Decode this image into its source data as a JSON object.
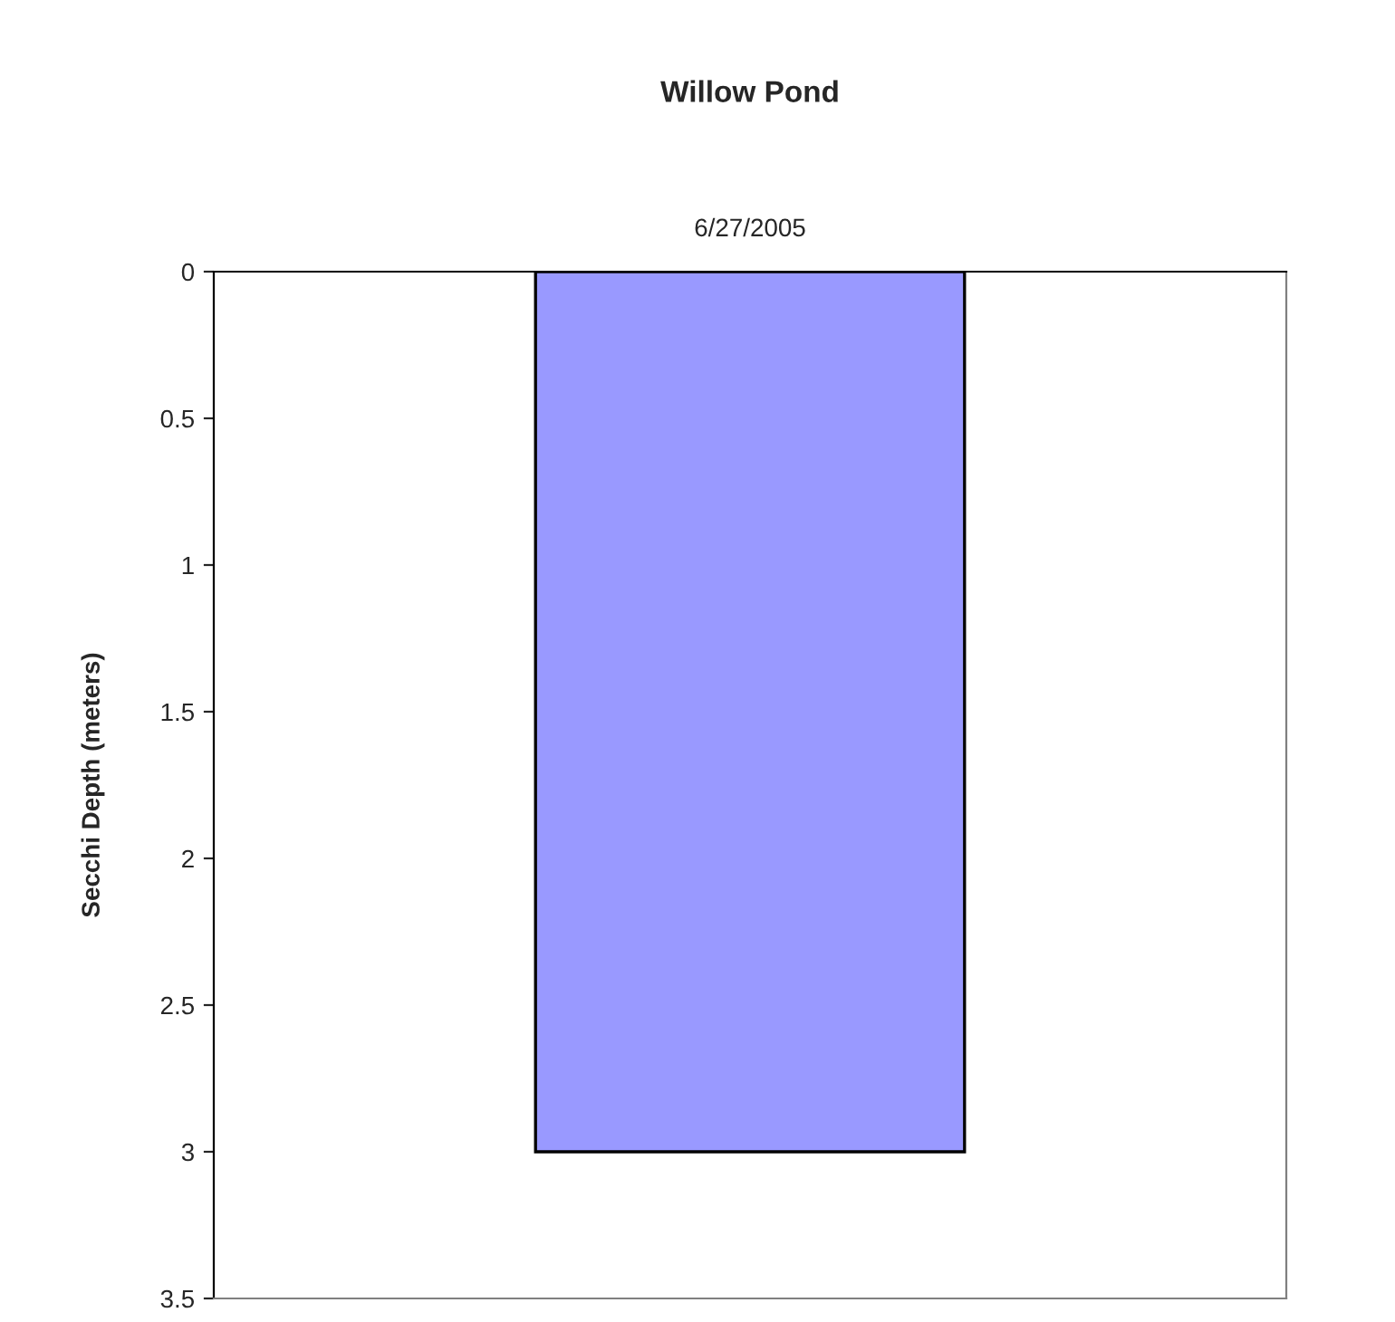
{
  "chart_data": {
    "type": "bar",
    "title": "Willow Pond",
    "ylabel": "Secchi Depth (meters)",
    "categories": [
      "6/27/2005"
    ],
    "values": [
      3
    ],
    "color": "#9999ff",
    "ylim": [
      3.5,
      0
    ],
    "yticks": [
      0,
      0.5,
      1,
      1.5,
      2,
      2.5,
      3,
      3.5
    ],
    "grid": false,
    "legend": false
  }
}
